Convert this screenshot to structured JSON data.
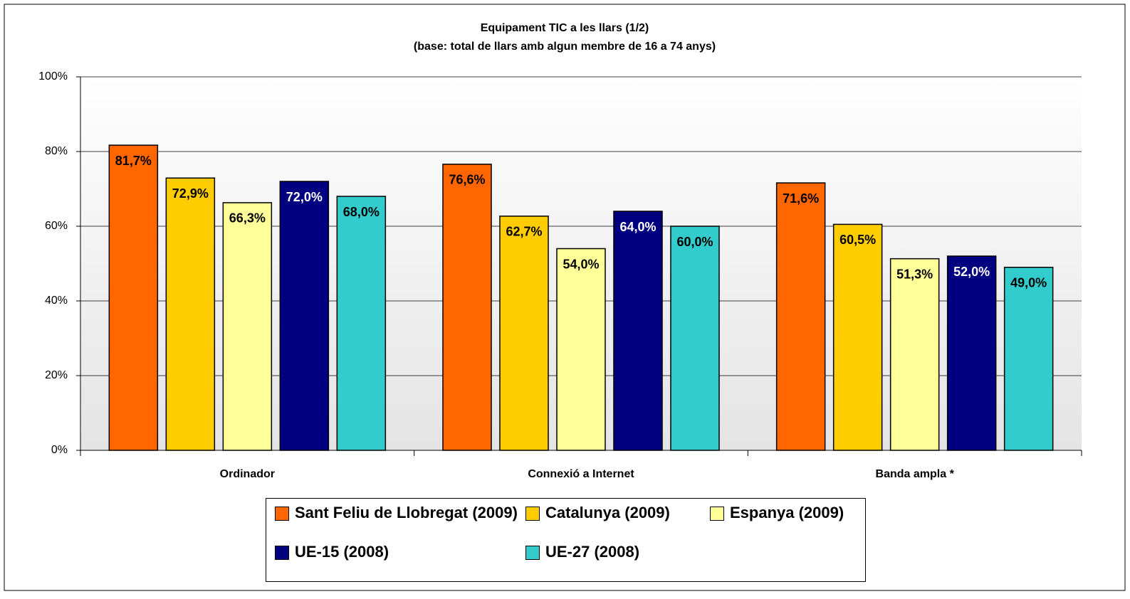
{
  "chart_data": {
    "type": "bar",
    "title": "Equipament TIC a les llars (1/2)",
    "subtitle": "(base: total de llars amb algun membre de 16 a 74 anys)",
    "categories": [
      "Ordinador",
      "Connexió a Internet",
      "Banda ampla *"
    ],
    "series": [
      {
        "name": "Sant Feliu de Llobregat (2009)",
        "color": "#ff6600",
        "values": [
          81.7,
          76.6,
          71.6
        ],
        "value_labels": [
          "81,7%",
          "76,6%",
          "71,6%"
        ]
      },
      {
        "name": "Catalunya (2009)",
        "color": "#ffcc00",
        "values": [
          72.9,
          62.7,
          60.5
        ],
        "value_labels": [
          "72,9%",
          "62,7%",
          "60,5%"
        ]
      },
      {
        "name": "Espanya (2009)",
        "color": "#ffff99",
        "values": [
          66.3,
          54.0,
          51.3
        ],
        "value_labels": [
          "66,3%",
          "54,0%",
          "51,3%"
        ]
      },
      {
        "name": "UE-15 (2008)",
        "color": "#000080",
        "values": [
          72.0,
          64.0,
          52.0
        ],
        "value_labels": [
          "72,0%",
          "64,0%",
          "52,0%"
        ]
      },
      {
        "name": "UE-27 (2008)",
        "color": "#33cccc",
        "values": [
          68.0,
          60.0,
          49.0
        ],
        "value_labels": [
          "68,0%",
          "60,0%",
          "49,0%"
        ]
      }
    ],
    "ylim": [
      0,
      100
    ],
    "yticks": [
      {
        "value": 0,
        "label": "0%"
      },
      {
        "value": 20,
        "label": "20%"
      },
      {
        "value": 40,
        "label": "40%"
      },
      {
        "value": 60,
        "label": "60%"
      },
      {
        "value": 80,
        "label": "80%"
      },
      {
        "value": 100,
        "label": "100%"
      }
    ],
    "grid": true
  }
}
